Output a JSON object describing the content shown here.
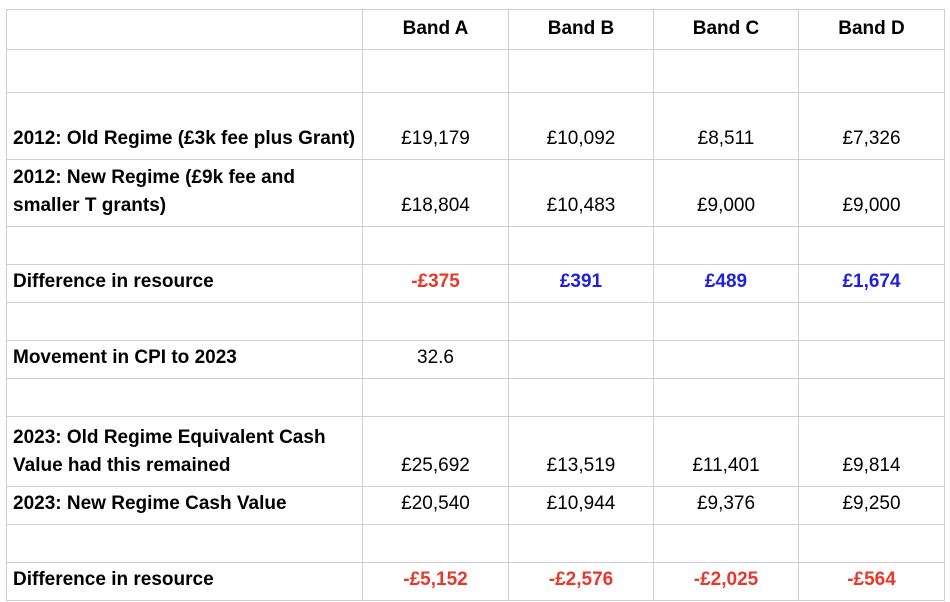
{
  "header": {
    "corner": "",
    "bands": [
      "Band A",
      "Band B",
      "Band C",
      "Band D"
    ]
  },
  "rows": {
    "old_2012": {
      "label": "2012: Old Regime (£3k fee plus Grant)",
      "values": [
        "£19,179",
        "£10,092",
        "£8,511",
        "£7,326"
      ]
    },
    "new_2012": {
      "label": "2012: New Regime (£9k fee and smaller T grants)",
      "values": [
        "£18,804",
        "£10,483",
        "£9,000",
        "£9,000"
      ]
    },
    "diff_2012": {
      "label": "Difference in resource",
      "values": [
        "-£375",
        "£391",
        "£489",
        "£1,674"
      ]
    },
    "cpi": {
      "label": "Movement in CPI to 2023",
      "values": [
        "32.6",
        "",
        "",
        ""
      ]
    },
    "old_2023": {
      "label": "2023: Old Regime Equivalent Cash Value had this remained",
      "values": [
        "£25,692",
        "£13,519",
        "£11,401",
        "£9,814"
      ]
    },
    "new_2023": {
      "label": "2023: New Regime Cash Value",
      "values": [
        "£20,540",
        "£10,944",
        "£9,376",
        "£9,250"
      ]
    },
    "diff_2023": {
      "label": "Difference in resource",
      "values": [
        "-£5,152",
        "-£2,576",
        "-£2,025",
        "-£564"
      ]
    }
  },
  "colors": {
    "negative": "#e8372b",
    "positive": "#1f1fe0",
    "gridline": "#cfcfcf"
  }
}
